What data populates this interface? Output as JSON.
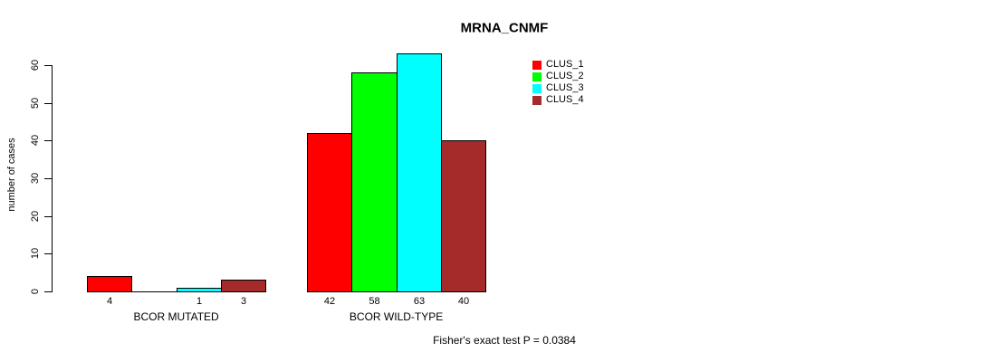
{
  "title": "MRNA_CNMF",
  "chart_data": {
    "type": "bar",
    "title": "MRNA_CNMF",
    "xlabel": "",
    "ylabel": "number of cases",
    "ylim": [
      0,
      60
    ],
    "yticks": [
      0,
      10,
      20,
      30,
      40,
      50,
      60
    ],
    "categories": [
      "BCOR MUTATED",
      "BCOR WILD-TYPE"
    ],
    "series": [
      {
        "name": "CLUS_1",
        "color": "#ff0000",
        "values": [
          4,
          42
        ]
      },
      {
        "name": "CLUS_2",
        "color": "#00ff00",
        "values": [
          0,
          58
        ]
      },
      {
        "name": "CLUS_3",
        "color": "#00ffff",
        "values": [
          1,
          63
        ]
      },
      {
        "name": "CLUS_4",
        "color": "#a52a2a",
        "values": [
          3,
          40
        ]
      }
    ],
    "bar_value_labels": [
      [
        "4",
        "",
        "1",
        "3"
      ],
      [
        "42",
        "58",
        "63",
        "40"
      ]
    ],
    "legend_position": "top-right",
    "legend_entries": [
      "CLUS_1",
      "CLUS_2",
      "CLUS_3",
      "CLUS_4"
    ],
    "grid": false,
    "annotation": "Fisher's exact test P = 0.0384",
    "axis_color": "#000000",
    "background_color": "#ffffff"
  }
}
